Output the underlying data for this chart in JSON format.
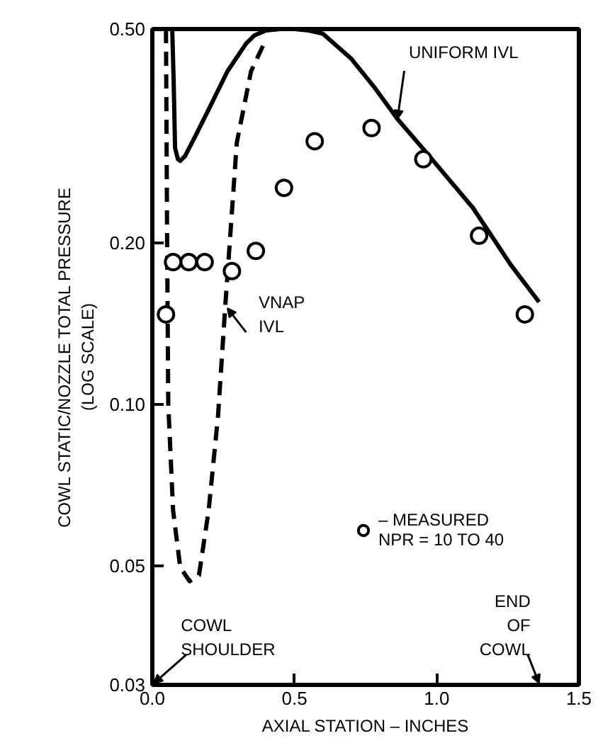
{
  "chart_data": {
    "type": "line",
    "xlabel": "AXIAL STATION – INCHES",
    "ylabel": "COWL STATIC/NOZZLE TOTAL PRESSURE\n(LOG SCALE)",
    "log": "y",
    "grid": false,
    "legend": "right",
    "xlim": [
      0,
      1.5
    ],
    "ylim": [
      0.03,
      0.5
    ],
    "xticks": [
      {
        "value": 0,
        "label": "0.0"
      },
      {
        "value": 0.5,
        "label": "0.5"
      },
      {
        "value": 1.0,
        "label": "1.0"
      },
      {
        "value": 1.5,
        "label": "1.5"
      }
    ],
    "yticks": [
      {
        "value": 0.03,
        "label": "0.03"
      },
      {
        "value": 0.05,
        "label": "0.05"
      },
      {
        "value": 0.1,
        "label": "0.10"
      },
      {
        "value": 0.2,
        "label": "0.20"
      },
      {
        "value": 0.5,
        "label": "0.50"
      }
    ],
    "series": [
      {
        "color": "#000000",
        "line_style": "solid",
        "x": [
          0.07,
          0.075,
          0.08,
          0.09,
          0.098,
          0.115,
          0.15,
          0.198,
          0.264,
          0.33,
          0.36,
          0.4,
          0.45,
          0.5,
          0.55,
          0.6,
          0.7,
          0.78,
          0.862,
          0.962,
          1.128,
          1.26,
          1.36
        ],
        "values": [
          0.5,
          0.4,
          0.3,
          0.286,
          0.284,
          0.29,
          0.315,
          0.354,
          0.417,
          0.47,
          0.487,
          0.497,
          0.5,
          0.5,
          0.497,
          0.49,
          0.44,
          0.39,
          0.34,
          0.295,
          0.232,
          0.182,
          0.155
        ]
      },
      {
        "color": "#000000",
        "line_style": "dashed",
        "x": [
          0.048,
          0.052,
          0.056,
          0.073,
          0.098,
          0.131,
          0.164,
          0.198,
          0.231,
          0.256,
          0.297,
          0.347,
          0.397
        ],
        "values": [
          0.5,
          0.2,
          0.1,
          0.0634,
          0.0497,
          0.0468,
          0.048,
          0.0634,
          0.095,
          0.151,
          0.307,
          0.417,
          0.475
        ]
      },
      {
        "type": "scatter",
        "name": "– MEASURED\nNPR = 10 TO 40",
        "color": "#000000",
        "marker": "circle",
        "x": [
          0.048,
          0.073,
          0.128,
          0.184,
          0.28,
          0.364,
          0.463,
          0.571,
          0.771,
          0.953,
          1.149,
          1.31
        ],
        "values": [
          0.147,
          0.184,
          0.184,
          0.184,
          0.177,
          0.193,
          0.253,
          0.309,
          0.327,
          0.286,
          0.206,
          0.147
        ]
      }
    ],
    "annotations": [
      {
        "text": "UNIFORM IVL",
        "x": 0.862,
        "y": 0.34
      },
      {
        "text": "VNAP\nIVL",
        "x": 0.264,
        "y": 0.151
      },
      "COWL\nSHOULDER",
      "END\nOF\nCOWL"
    ]
  }
}
